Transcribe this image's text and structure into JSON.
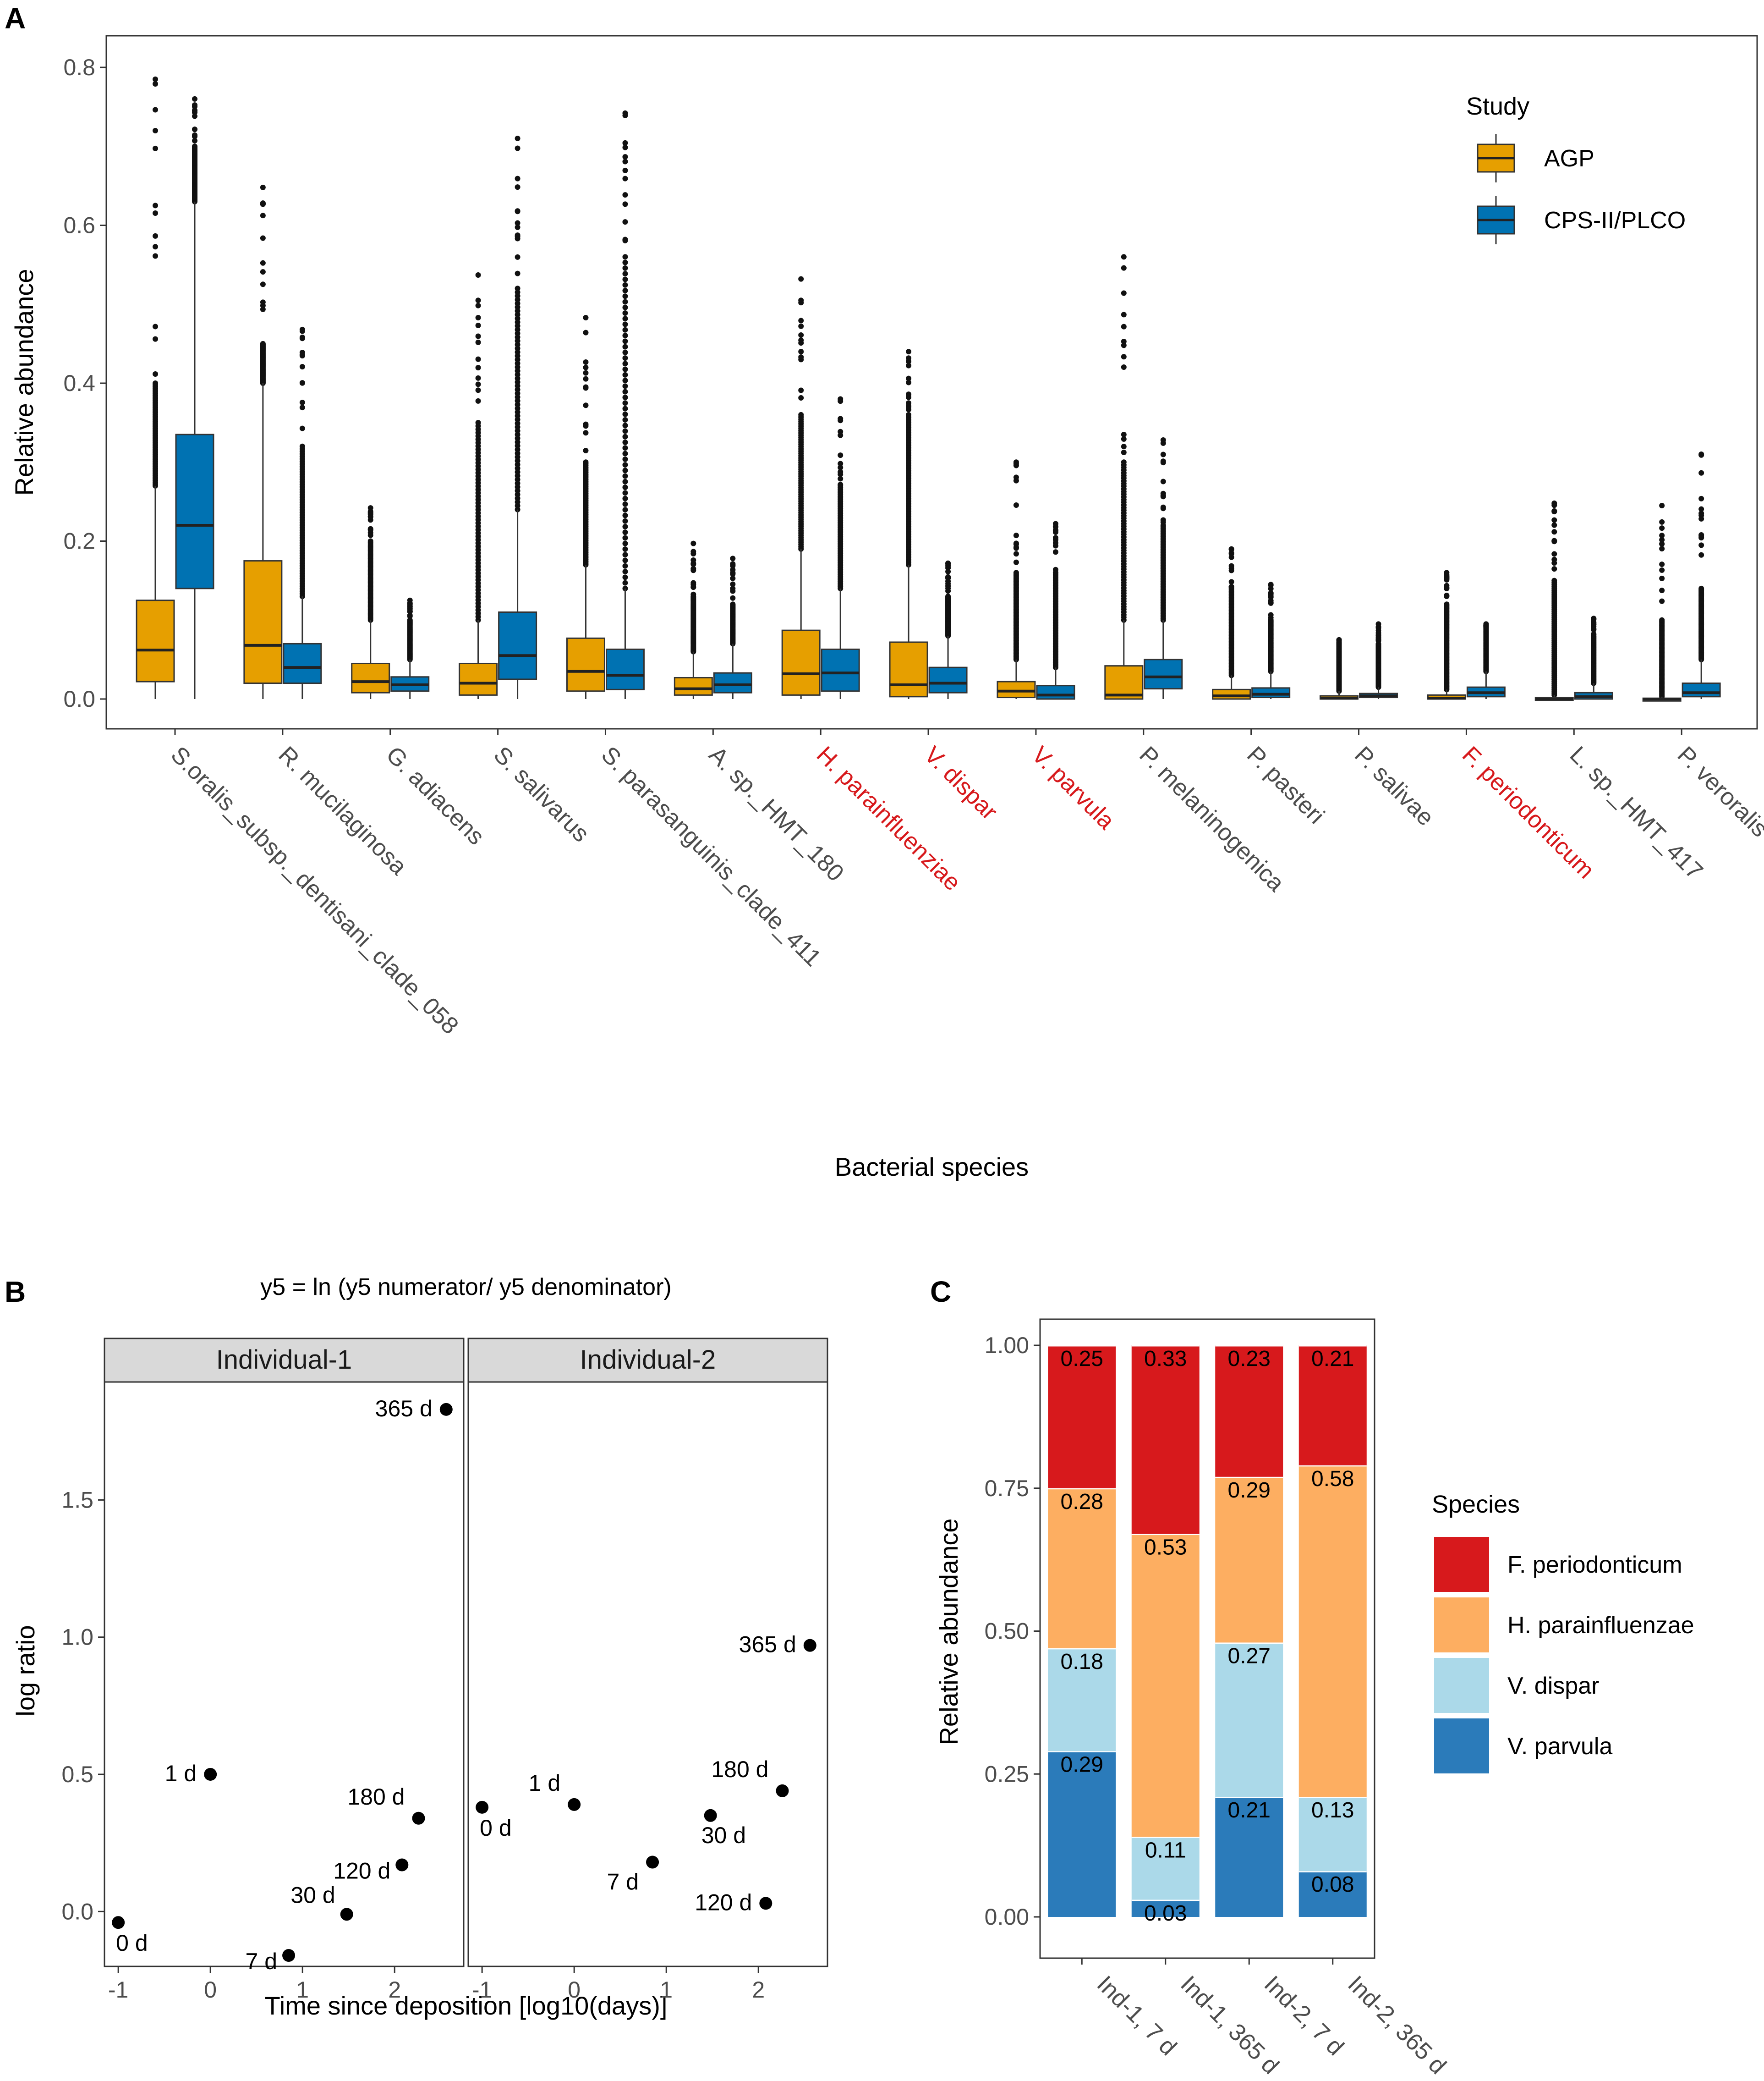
{
  "chart_data": [
    {
      "panel": "A",
      "type": "box",
      "xlabel": "Bacterial species",
      "ylabel": "Relative abundance",
      "ylim": [
        0,
        0.8
      ],
      "yticks": [
        "0.0",
        "0.2",
        "0.4",
        "0.6",
        "0.8"
      ],
      "legend": {
        "title": "Study",
        "position": "top-right"
      },
      "series": [
        {
          "name": "AGP",
          "color": "#E69F00"
        },
        {
          "name": "CPS-II/PLCO",
          "color": "#0072B2"
        }
      ],
      "highlight_color": "#D7191C",
      "categories": [
        {
          "label": "S.oralis_subsp._dentisani_clade_058",
          "highlight": false,
          "boxes": [
            {
              "min": 0.0,
              "q1": 0.022,
              "median": 0.062,
              "q3": 0.125,
              "max": 0.27,
              "outlier_max": 0.785,
              "dense": 0.4
            },
            {
              "min": 0.0,
              "q1": 0.14,
              "median": 0.22,
              "q3": 0.335,
              "max": 0.63,
              "outlier_max": 0.76,
              "dense": 0.7
            }
          ]
        },
        {
          "label": "R. mucilaginosa",
          "highlight": false,
          "boxes": [
            {
              "min": 0.0,
              "q1": 0.02,
              "median": 0.068,
              "q3": 0.175,
              "max": 0.4,
              "outlier_max": 0.648,
              "dense": 0.45
            },
            {
              "min": 0.0,
              "q1": 0.02,
              "median": 0.04,
              "q3": 0.07,
              "max": 0.13,
              "outlier_max": 0.468,
              "dense": 0.32
            }
          ]
        },
        {
          "label": "G. adiacens",
          "highlight": false,
          "boxes": [
            {
              "min": 0.0,
              "q1": 0.008,
              "median": 0.022,
              "q3": 0.045,
              "max": 0.1,
              "outlier_max": 0.242,
              "dense": 0.2
            },
            {
              "min": 0.0,
              "q1": 0.01,
              "median": 0.018,
              "q3": 0.028,
              "max": 0.05,
              "outlier_max": 0.125,
              "dense": 0.1
            }
          ]
        },
        {
          "label": "S. salivarus",
          "highlight": false,
          "boxes": [
            {
              "min": 0.0,
              "q1": 0.005,
              "median": 0.02,
              "q3": 0.045,
              "max": 0.1,
              "outlier_max": 0.537,
              "dense": 0.35
            },
            {
              "min": 0.0,
              "q1": 0.025,
              "median": 0.055,
              "q3": 0.11,
              "max": 0.24,
              "outlier_max": 0.71,
              "dense": 0.52
            }
          ]
        },
        {
          "label": "S. parasanguinis_clade_411",
          "highlight": false,
          "boxes": [
            {
              "min": 0.0,
              "q1": 0.01,
              "median": 0.035,
              "q3": 0.077,
              "max": 0.17,
              "outlier_max": 0.483,
              "dense": 0.3
            },
            {
              "min": 0.0,
              "q1": 0.012,
              "median": 0.03,
              "q3": 0.063,
              "max": 0.14,
              "outlier_max": 0.742,
              "dense": 0.56
            }
          ]
        },
        {
          "label": "A. sp._HMT_180",
          "highlight": false,
          "boxes": [
            {
              "min": 0.0,
              "q1": 0.005,
              "median": 0.013,
              "q3": 0.027,
              "max": 0.06,
              "outlier_max": 0.197,
              "dense": 0.13
            },
            {
              "min": 0.0,
              "q1": 0.008,
              "median": 0.018,
              "q3": 0.033,
              "max": 0.07,
              "outlier_max": 0.178,
              "dense": 0.12
            }
          ]
        },
        {
          "label": "H. parainfluenziae",
          "highlight": true,
          "boxes": [
            {
              "min": 0.0,
              "q1": 0.005,
              "median": 0.032,
              "q3": 0.087,
              "max": 0.19,
              "outlier_max": 0.532,
              "dense": 0.36
            },
            {
              "min": 0.0,
              "q1": 0.01,
              "median": 0.033,
              "q3": 0.063,
              "max": 0.14,
              "outlier_max": 0.38,
              "dense": 0.27
            }
          ]
        },
        {
          "label": "V. dispar",
          "highlight": true,
          "boxes": [
            {
              "min": 0.0,
              "q1": 0.003,
              "median": 0.018,
              "q3": 0.072,
              "max": 0.17,
              "outlier_max": 0.44,
              "dense": 0.36
            },
            {
              "min": 0.0,
              "q1": 0.008,
              "median": 0.02,
              "q3": 0.04,
              "max": 0.08,
              "outlier_max": 0.172,
              "dense": 0.13
            }
          ]
        },
        {
          "label": "V. parvula",
          "highlight": true,
          "boxes": [
            {
              "min": 0.0,
              "q1": 0.002,
              "median": 0.01,
              "q3": 0.022,
              "max": 0.05,
              "outlier_max": 0.3,
              "dense": 0.16
            },
            {
              "min": 0.0,
              "q1": 0.0,
              "median": 0.005,
              "q3": 0.017,
              "max": 0.04,
              "outlier_max": 0.222,
              "dense": 0.16
            }
          ]
        },
        {
          "label": "P. melaninogenica",
          "highlight": false,
          "boxes": [
            {
              "min": 0.0,
              "q1": 0.0,
              "median": 0.005,
              "q3": 0.042,
              "max": 0.1,
              "outlier_max": 0.56,
              "dense": 0.3
            },
            {
              "min": 0.0,
              "q1": 0.013,
              "median": 0.028,
              "q3": 0.05,
              "max": 0.1,
              "outlier_max": 0.328,
              "dense": 0.22
            }
          ]
        },
        {
          "label": "P. pasteri",
          "highlight": false,
          "boxes": [
            {
              "min": 0.0,
              "q1": 0.0,
              "median": 0.004,
              "q3": 0.012,
              "max": 0.03,
              "outlier_max": 0.19,
              "dense": 0.14
            },
            {
              "min": 0.0,
              "q1": 0.002,
              "median": 0.006,
              "q3": 0.014,
              "max": 0.035,
              "outlier_max": 0.145,
              "dense": 0.1
            }
          ]
        },
        {
          "label": "P. salivae",
          "highlight": false,
          "boxes": [
            {
              "min": 0.0,
              "q1": 0.0,
              "median": 0.001,
              "q3": 0.004,
              "max": 0.01,
              "outlier_max": 0.075,
              "dense": 0.07
            },
            {
              "min": 0.0,
              "q1": 0.002,
              "median": 0.004,
              "q3": 0.007,
              "max": 0.015,
              "outlier_max": 0.095,
              "dense": 0.07
            }
          ]
        },
        {
          "label": "F. periodonticum",
          "highlight": true,
          "boxes": [
            {
              "min": 0.0,
              "q1": 0.0,
              "median": 0.001,
              "q3": 0.005,
              "max": 0.012,
              "outlier_max": 0.16,
              "dense": 0.12
            },
            {
              "min": 0.0,
              "q1": 0.003,
              "median": 0.008,
              "q3": 0.015,
              "max": 0.035,
              "outlier_max": 0.095,
              "dense": 0.09
            }
          ]
        },
        {
          "label": "L. sp._HMT_417",
          "highlight": false,
          "boxes": [
            {
              "min": 0.0,
              "q1": 0.0,
              "median": 0.0,
              "q3": 0.002,
              "max": 0.005,
              "outlier_max": 0.248,
              "dense": 0.15
            },
            {
              "min": 0.0,
              "q1": 0.0,
              "median": 0.003,
              "q3": 0.008,
              "max": 0.02,
              "outlier_max": 0.102,
              "dense": 0.08
            }
          ]
        },
        {
          "label": "P. veroralis",
          "highlight": false,
          "boxes": [
            {
              "min": 0.0,
              "q1": 0.0,
              "median": 0.0,
              "q3": 0.001,
              "max": 0.003,
              "outlier_max": 0.245,
              "dense": 0.1
            },
            {
              "min": 0.0,
              "q1": 0.003,
              "median": 0.008,
              "q3": 0.02,
              "max": 0.05,
              "outlier_max": 0.31,
              "dense": 0.14
            }
          ]
        }
      ]
    },
    {
      "panel": "B",
      "type": "scatter",
      "title": "y5 = ln (y5 numerator/ y5 denominator)",
      "xlabel": "Time since deposition [log10(days)]",
      "ylabel": "log ratio",
      "xlim": [
        -1.15,
        2.75
      ],
      "ylim": [
        -0.2,
        1.93
      ],
      "xticks": [
        "-1",
        "0",
        "1",
        "2"
      ],
      "yticks": [
        "0.0",
        "0.5",
        "1.0",
        "1.5"
      ],
      "facets": [
        {
          "name": "Individual-1",
          "points": [
            {
              "label": "0 d",
              "x": -1.0,
              "y": -0.04
            },
            {
              "label": "1 d",
              "x": 0.0,
              "y": 0.5
            },
            {
              "label": "7 d",
              "x": 0.85,
              "y": -0.16
            },
            {
              "label": "30 d",
              "x": 1.48,
              "y": -0.01
            },
            {
              "label": "120 d",
              "x": 2.08,
              "y": 0.17
            },
            {
              "label": "180 d",
              "x": 2.26,
              "y": 0.34
            },
            {
              "label": "365 d",
              "x": 2.56,
              "y": 1.83
            }
          ]
        },
        {
          "name": "Individual-2",
          "points": [
            {
              "label": "0 d",
              "x": -1.0,
              "y": 0.38
            },
            {
              "label": "1 d",
              "x": 0.0,
              "y": 0.39
            },
            {
              "label": "7 d",
              "x": 0.85,
              "y": 0.18
            },
            {
              "label": "30 d",
              "x": 1.48,
              "y": 0.35
            },
            {
              "label": "120 d",
              "x": 2.08,
              "y": 0.03
            },
            {
              "label": "180 d",
              "x": 2.26,
              "y": 0.44
            },
            {
              "label": "365 d",
              "x": 2.56,
              "y": 0.97
            }
          ]
        }
      ]
    },
    {
      "panel": "C",
      "type": "stacked_bar",
      "xlabel": "",
      "ylabel": "Relative abundance",
      "ylim": [
        0,
        1
      ],
      "yticks": [
        "0.00",
        "0.25",
        "0.50",
        "0.75",
        "1.00"
      ],
      "categories": [
        "Ind-1, 7 d",
        "Ind-1, 365 d",
        "Ind-2, 7 d",
        "Ind-2, 365 d"
      ],
      "legend": {
        "title": "Species",
        "position": "right"
      },
      "series": [
        {
          "name": "V. parvula",
          "color": "#2B7BBA",
          "values": [
            0.29,
            0.03,
            0.21,
            0.08
          ],
          "labels": [
            "0.29",
            "0.03",
            "0.21",
            "0.08"
          ]
        },
        {
          "name": "V. dispar",
          "color": "#ABD9E9",
          "values": [
            0.18,
            0.11,
            0.27,
            0.13
          ],
          "labels": [
            "0.18",
            "0.11",
            "0.27",
            "0.13"
          ]
        },
        {
          "name": "H. parainfluenzae",
          "color": "#FDAE61",
          "values": [
            0.28,
            0.53,
            0.29,
            0.58
          ],
          "labels": [
            "0.28",
            "0.53",
            "0.29",
            "0.58"
          ]
        },
        {
          "name": "F. periodonticum",
          "color": "#D7191C",
          "values": [
            0.25,
            0.33,
            0.23,
            0.21
          ],
          "labels": [
            "0.25",
            "0.33",
            "0.23",
            "0.21"
          ]
        }
      ],
      "legend_order": [
        "F. periodonticum",
        "H. parainfluenzae",
        "V. dispar",
        "V. parvula"
      ]
    }
  ],
  "panel_labels": {
    "a": "A",
    "b": "B",
    "c": "C"
  }
}
